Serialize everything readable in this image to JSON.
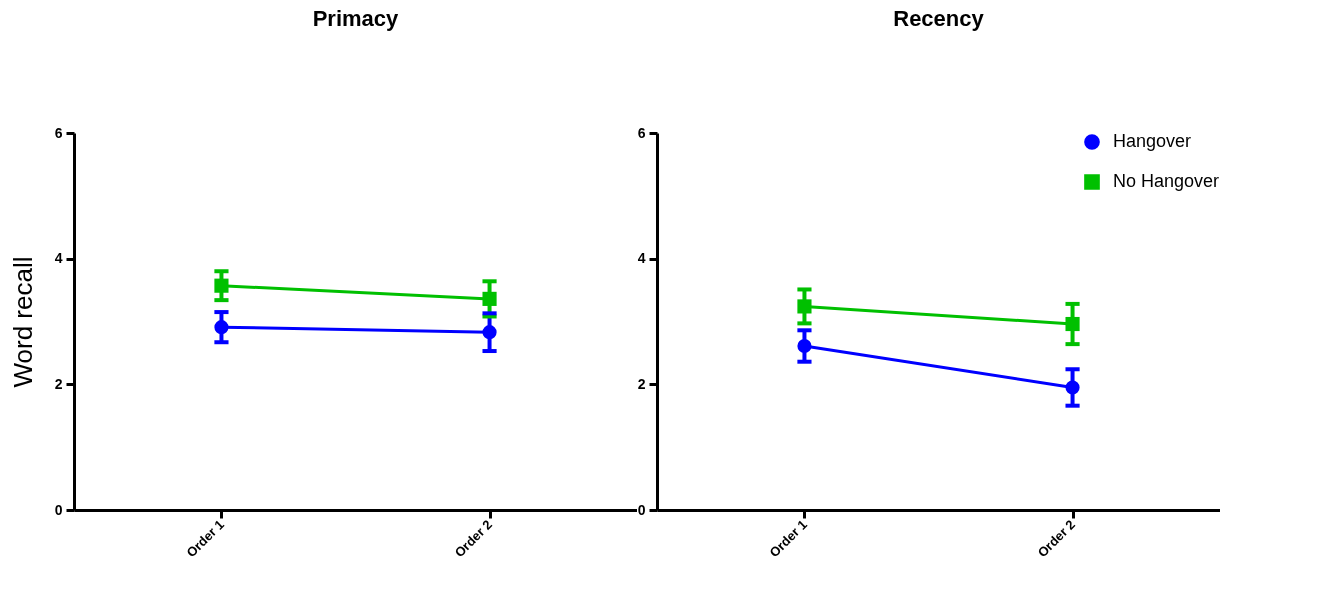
{
  "chart_data": [
    {
      "type": "line",
      "title": "Primacy",
      "ylabel": "Word recall",
      "categories": [
        "Order 1",
        "Order 2"
      ],
      "ylim": [
        0,
        6
      ],
      "yticks": [
        0,
        2,
        4,
        6
      ],
      "grid": false,
      "series": [
        {
          "color": "#0000ff",
          "marker": "circle",
          "values": [
            2.91,
            2.83
          ],
          "errors": [
            0.24,
            0.3
          ]
        },
        {
          "color": "#00c000",
          "marker": "square",
          "values": [
            3.57,
            3.36
          ],
          "errors": [
            0.23,
            0.28
          ]
        }
      ]
    },
    {
      "type": "line",
      "title": "Recency",
      "categories": [
        "Order 1",
        "Order 2"
      ],
      "ylim": [
        0,
        6
      ],
      "yticks": [
        0,
        2,
        4,
        6
      ],
      "grid": false,
      "legend": "top right",
      "series": [
        {
          "name": "Hangover",
          "color": "#0000ff",
          "marker": "circle",
          "values": [
            2.61,
            1.95
          ],
          "errors": [
            0.25,
            0.29
          ]
        },
        {
          "name": "No Hangover",
          "color": "#00c000",
          "marker": "square",
          "values": [
            3.24,
            2.96
          ],
          "errors": [
            0.27,
            0.32
          ]
        }
      ]
    }
  ]
}
